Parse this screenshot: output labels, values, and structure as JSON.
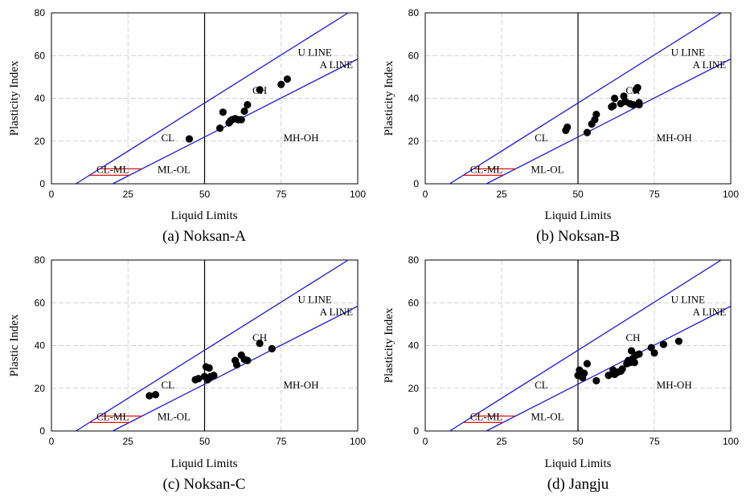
{
  "figure": {
    "panels": [
      {
        "caption": "(a) Noksan-A",
        "ylabel": "Plasticity Index"
      },
      {
        "caption": "(b) Noksan-B",
        "ylabel": "Plasticity Index"
      },
      {
        "caption": "(c) Noksan-C",
        "ylabel": "Plastic Index"
      },
      {
        "caption": "(d) Jangju",
        "ylabel": "Plasticity Index"
      }
    ],
    "xlabel": "Liquid Limits",
    "line_labels": {
      "u_line": "U LINE",
      "a_line": "A LINE"
    },
    "region_labels": {
      "cl": "CL",
      "ch": "CH",
      "ml_ol": "ML-OL",
      "mh_oh": "MH-OH",
      "cl_ml": "CL-ML"
    },
    "x_ticks": [
      "0",
      "25",
      "50",
      "75",
      "100"
    ],
    "y_ticks": [
      "0",
      "20",
      "40",
      "60",
      "80"
    ]
  },
  "chart_data": [
    {
      "type": "scatter",
      "title": "(a) Noksan-A",
      "xlabel": "Liquid Limits",
      "ylabel": "Plasticity Index",
      "xlim": [
        0,
        100
      ],
      "ylim": [
        0,
        80
      ],
      "grid": true,
      "series": [
        {
          "x": [
            45,
            55,
            56,
            58,
            58.5,
            59,
            60,
            61,
            62,
            63,
            64,
            68,
            75,
            77
          ],
          "y": [
            21,
            26,
            33.5,
            28.5,
            29.5,
            30,
            30.5,
            30,
            30,
            34,
            37,
            44,
            46.5,
            49
          ]
        }
      ]
    },
    {
      "type": "scatter",
      "title": "(b) Noksan-B",
      "xlabel": "Liquid Limits",
      "ylabel": "Plasticity Index",
      "xlim": [
        0,
        100
      ],
      "ylim": [
        0,
        80
      ],
      "grid": true,
      "series": [
        {
          "x": [
            46,
            46.5,
            53,
            54.5,
            55.5,
            56,
            61,
            61.5,
            62,
            64,
            65,
            65.5,
            67,
            68,
            69,
            69.5,
            70,
            70
          ],
          "y": [
            25,
            26.5,
            24,
            28,
            30,
            32.5,
            36,
            36.5,
            40,
            37.5,
            41,
            38.5,
            37.5,
            37,
            44,
            45,
            37,
            38
          ]
        }
      ]
    },
    {
      "type": "scatter",
      "title": "(c) Noksan-C",
      "xlabel": "Liquid Limits",
      "ylabel": "Plastic Index",
      "xlim": [
        0,
        100
      ],
      "ylim": [
        0,
        80
      ],
      "grid": true,
      "series": [
        {
          "x": [
            32,
            34,
            47,
            48,
            50,
            50.5,
            51,
            51.5,
            52,
            53,
            60,
            60.5,
            62,
            63,
            64,
            68,
            72
          ],
          "y": [
            16.5,
            17,
            24,
            24.5,
            25.5,
            30,
            24,
            29.5,
            25.5,
            26,
            33,
            31,
            35.5,
            33.5,
            33,
            41,
            38.5
          ]
        }
      ]
    },
    {
      "type": "scatter",
      "title": "(d) Jangju",
      "xlabel": "Liquid Limits",
      "ylabel": "Plasticity Index",
      "xlim": [
        0,
        100
      ],
      "ylim": [
        0,
        80
      ],
      "grid": true,
      "series": [
        {
          "x": [
            50,
            50.5,
            51,
            51.5,
            52,
            53,
            56,
            60,
            61.5,
            62,
            63,
            64,
            64.5,
            66,
            66.5,
            67,
            67.5,
            68,
            68.5,
            69,
            70,
            74,
            75,
            78,
            83
          ],
          "y": [
            26,
            28.5,
            27,
            25,
            27,
            31.5,
            23.5,
            26,
            28.5,
            26.5,
            27.5,
            28,
            29,
            31.5,
            33,
            32,
            37.5,
            34,
            32,
            35.5,
            36,
            39,
            36.5,
            40.5,
            42
          ]
        }
      ]
    }
  ]
}
